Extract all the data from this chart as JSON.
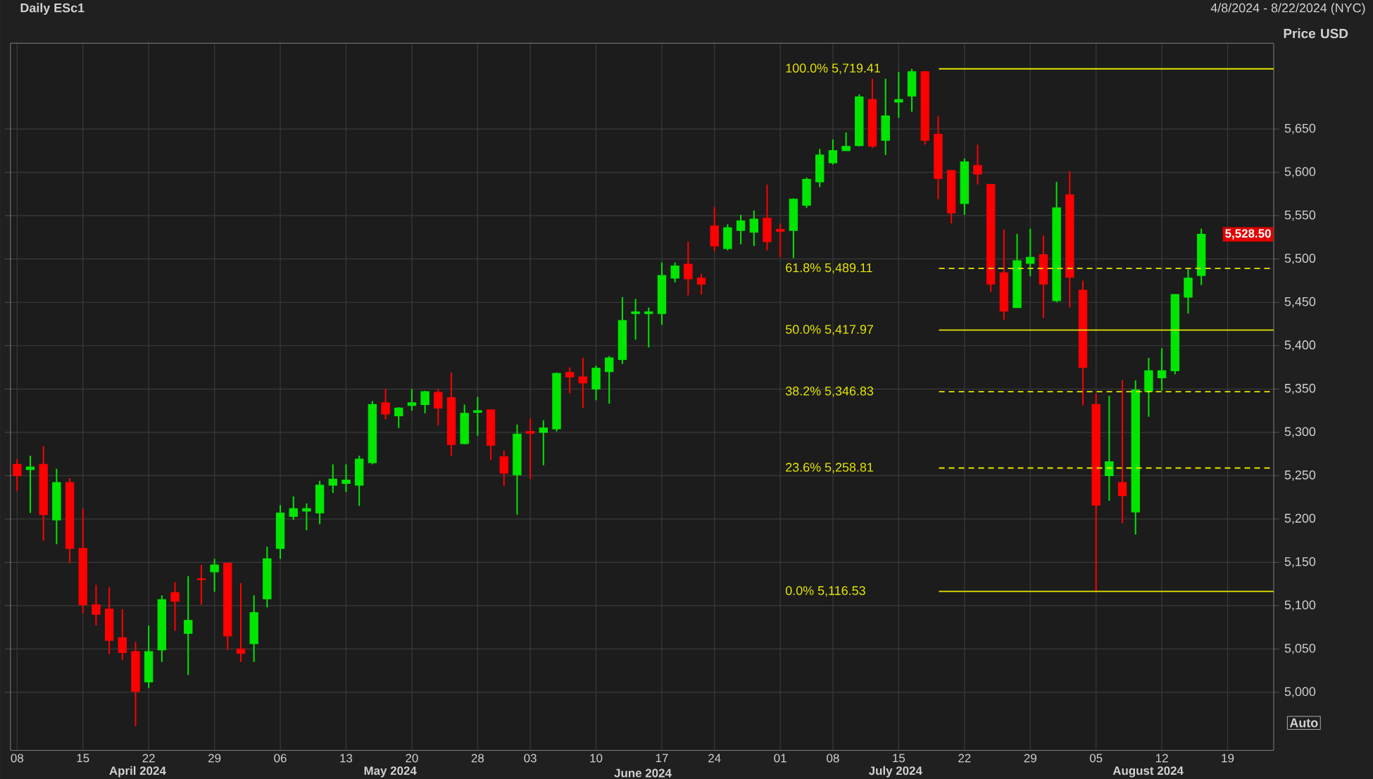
{
  "chart_data": {
    "type": "candlestick",
    "title": "Daily ESc1",
    "subtitle": "4/8/2024 - 8/22/2024 (NYC)",
    "ylabel": "Price USD",
    "categories": [
      "08",
      null,
      null,
      null,
      null,
      "15",
      null,
      null,
      null,
      null,
      "22",
      null,
      null,
      null,
      null,
      "29",
      null,
      null,
      null,
      null,
      "06",
      null,
      null,
      null,
      null,
      "13",
      null,
      null,
      null,
      null,
      "20",
      null,
      null,
      null,
      null,
      "28",
      null,
      null,
      null,
      "03",
      null,
      null,
      null,
      null,
      "10",
      null,
      null,
      null,
      null,
      "17",
      null,
      null,
      null,
      "24",
      null,
      null,
      null,
      null,
      "01",
      null,
      null,
      null,
      "08",
      null,
      null,
      null,
      null,
      "15",
      null,
      null,
      null,
      null,
      "22",
      null,
      null,
      null,
      null,
      "29",
      null,
      null,
      null,
      null,
      "05",
      null,
      null,
      null,
      null,
      "12",
      null,
      null,
      null,
      null,
      "19",
      null,
      null,
      null
    ],
    "ohlc": [
      [
        5263,
        5269,
        5232,
        5250
      ],
      [
        5257,
        5273,
        5207,
        5260
      ],
      [
        5263,
        5284,
        5175,
        5205
      ],
      [
        5199,
        5258,
        5171,
        5242
      ],
      [
        5242,
        5247,
        5149,
        5166
      ],
      [
        5166,
        5212,
        5091,
        5101
      ],
      [
        5101,
        5124,
        5077,
        5090
      ],
      [
        5096,
        5121,
        5044,
        5060
      ],
      [
        5063,
        5096,
        5037,
        5046
      ],
      [
        5047,
        5058,
        4961,
        5001
      ],
      [
        5012,
        5077,
        5005,
        5047
      ],
      [
        5049,
        5112,
        5035,
        5107
      ],
      [
        5115,
        5127,
        5071,
        5105
      ],
      [
        5068,
        5134,
        5020,
        5083
      ],
      [
        5131,
        5147,
        5101,
        5130
      ],
      [
        5139,
        5154,
        5116,
        5147
      ],
      [
        5149,
        5149,
        5049,
        5065
      ],
      [
        5050,
        5126,
        5035,
        5045
      ],
      [
        5056,
        5112,
        5035,
        5092
      ],
      [
        5108,
        5168,
        5098,
        5154
      ],
      [
        5166,
        5216,
        5154,
        5207
      ],
      [
        5203,
        5226,
        5199,
        5212
      ],
      [
        5209,
        5218,
        5187,
        5212
      ],
      [
        5207,
        5244,
        5194,
        5239
      ],
      [
        5239,
        5263,
        5230,
        5246
      ],
      [
        5241,
        5263,
        5231,
        5245
      ],
      [
        5239,
        5273,
        5215,
        5269
      ],
      [
        5265,
        5336,
        5263,
        5332
      ],
      [
        5334,
        5350,
        5315,
        5321
      ],
      [
        5319,
        5329,
        5305,
        5328
      ],
      [
        5331,
        5350,
        5325,
        5334
      ],
      [
        5332,
        5348,
        5322,
        5347
      ],
      [
        5346,
        5350,
        5308,
        5328
      ],
      [
        5340,
        5369,
        5273,
        5286
      ],
      [
        5287,
        5332,
        5286,
        5322
      ],
      [
        5323,
        5341,
        5296,
        5325
      ],
      [
        5326,
        5326,
        5268,
        5285
      ],
      [
        5272,
        5279,
        5238,
        5253
      ],
      [
        5251,
        5309,
        5205,
        5298
      ],
      [
        5301,
        5316,
        5246,
        5299
      ],
      [
        5300,
        5314,
        5262,
        5305
      ],
      [
        5304,
        5369,
        5301,
        5368
      ],
      [
        5369,
        5375,
        5345,
        5364
      ],
      [
        5364,
        5386,
        5328,
        5357
      ],
      [
        5350,
        5377,
        5337,
        5374
      ],
      [
        5370,
        5388,
        5333,
        5386
      ],
      [
        5384,
        5456,
        5379,
        5429
      ],
      [
        5437,
        5454,
        5407,
        5439
      ],
      [
        5437,
        5444,
        5398,
        5439
      ],
      [
        5437,
        5496,
        5424,
        5481
      ],
      [
        5478,
        5496,
        5473,
        5492
      ],
      [
        5494,
        5520,
        5458,
        5477
      ],
      [
        5478,
        5483,
        5459,
        5471
      ],
      [
        5538,
        5560,
        5509,
        5515
      ],
      [
        5512,
        5540,
        5510,
        5536
      ],
      [
        5533,
        5551,
        5517,
        5544
      ],
      [
        5531,
        5556,
        5515,
        5546
      ],
      [
        5547,
        5586,
        5510,
        5520
      ],
      [
        5534,
        5541,
        5502,
        5532
      ],
      [
        5533,
        5570,
        5501,
        5569
      ],
      [
        5562,
        5594,
        5559,
        5592
      ],
      [
        5589,
        5627,
        5583,
        5620
      ],
      [
        5611,
        5638,
        5609,
        5625
      ],
      [
        5625,
        5646,
        5625,
        5630
      ],
      [
        5631,
        5690,
        5630,
        5687
      ],
      [
        5684,
        5708,
        5628,
        5630
      ],
      [
        5637,
        5708,
        5620,
        5665
      ],
      [
        5681,
        5716,
        5663,
        5684
      ],
      [
        5688,
        5719.41,
        5670,
        5716
      ],
      [
        5716,
        5717,
        5632,
        5637
      ],
      [
        5644,
        5665,
        5569,
        5593
      ],
      [
        5602,
        5602,
        5541,
        5553
      ],
      [
        5564,
        5616,
        5551,
        5612
      ],
      [
        5608,
        5632,
        5586,
        5598
      ],
      [
        5586,
        5586,
        5462,
        5471
      ],
      [
        5484,
        5534,
        5430,
        5440
      ],
      [
        5444,
        5529,
        5444,
        5498
      ],
      [
        5495,
        5535,
        5480,
        5502
      ],
      [
        5505,
        5527,
        5432,
        5471
      ],
      [
        5452,
        5589,
        5450,
        5559
      ],
      [
        5574,
        5601,
        5444,
        5479
      ],
      [
        5464,
        5475,
        5331,
        5375
      ],
      [
        5332,
        5345,
        5116.53,
        5216
      ],
      [
        5250,
        5342,
        5221,
        5266
      ],
      [
        5242,
        5360,
        5195,
        5227
      ],
      [
        5208,
        5360,
        5182,
        5349
      ],
      [
        5347,
        5386,
        5318,
        5371
      ],
      [
        5363,
        5397,
        5348,
        5371
      ],
      [
        5371,
        5459,
        5367,
        5459
      ],
      [
        5456,
        5488,
        5437,
        5478
      ],
      [
        5481,
        5535,
        5470,
        5528.5
      ],
      null,
      null,
      null,
      null,
      null
    ],
    "colors": [
      "#ff0000",
      "#00e600",
      "#ff0000",
      "#00e600",
      "#ff0000",
      "#ff0000",
      "#ff0000",
      "#ff0000",
      "#ff0000",
      "#ff0000",
      "#00e600",
      "#00e600",
      "#ff0000",
      "#00e600",
      "#ff0000",
      "#00e600",
      "#ff0000",
      "#ff0000",
      "#00e600",
      "#00e600",
      "#00e600",
      "#00e600",
      "#00e600",
      "#00e600",
      "#00e600",
      "#00e600",
      "#00e600",
      "#00e600",
      "#ff0000",
      "#00e600",
      "#00e600",
      "#00e600",
      "#ff0000",
      "#ff0000",
      "#00e600",
      "#00e600",
      "#ff0000",
      "#ff0000",
      "#00e600",
      "#ff0000",
      "#00e600",
      "#00e600",
      "#ff0000",
      "#ff0000",
      "#00e600",
      "#00e600",
      "#00e600",
      "#00e600",
      "#00e600",
      "#00e600",
      "#00e600",
      "#ff0000",
      "#ff0000",
      "#ff0000",
      "#00e600",
      "#00e600",
      "#00e600",
      "#ff0000",
      "#ff0000",
      "#00e600",
      "#00e600",
      "#00e600",
      "#00e600",
      "#00e600",
      "#00e600",
      "#ff0000",
      "#00e600",
      "#00e600",
      "#00e600",
      "#ff0000",
      "#ff0000",
      "#ff0000",
      "#00e600",
      "#ff0000",
      "#ff0000",
      "#ff0000",
      "#00e600",
      "#00e600",
      "#ff0000",
      "#00e600",
      "#ff0000",
      "#ff0000",
      "#ff0000",
      "#00e600",
      "#ff0000",
      "#00e600",
      "#00e600",
      "#00e600",
      "#00e600",
      "#00e600",
      "#00e600",
      null,
      null,
      null,
      null,
      null
    ],
    "ylim": [
      4933,
      5749
    ],
    "yticks": [
      {
        "value": 5000,
        "label": "5,000"
      },
      {
        "value": 5050,
        "label": "5,050"
      },
      {
        "value": 5100,
        "label": "5,100"
      },
      {
        "value": 5150,
        "label": "5,150"
      },
      {
        "value": 5200,
        "label": "5,200"
      },
      {
        "value": 5250,
        "label": "5,250"
      },
      {
        "value": 5300,
        "label": "5,300"
      },
      {
        "value": 5350,
        "label": "5,350"
      },
      {
        "value": 5400,
        "label": "5,400"
      },
      {
        "value": 5450,
        "label": "5,450"
      },
      {
        "value": 5500,
        "label": "5,500"
      },
      {
        "value": 5550,
        "label": "5,550"
      },
      {
        "value": 5600,
        "label": "5,600"
      },
      {
        "value": 5650,
        "label": "5,650"
      }
    ],
    "grid": true,
    "ref_lines": [
      {
        "axis": "y",
        "value": 5719.41,
        "label": "100.0% 5,719.41",
        "color": "#e6e600",
        "line_style": "solid"
      },
      {
        "axis": "y",
        "value": 5489.11,
        "label": "61.8% 5,489.11",
        "color": "#e6e600",
        "line_style": "dashed"
      },
      {
        "axis": "y",
        "value": 5417.97,
        "label": "50.0% 5,417.97",
        "color": "#e6e600",
        "line_style": "solid"
      },
      {
        "axis": "y",
        "value": 5346.83,
        "label": "38.2% 5,346.83",
        "color": "#e6e600",
        "line_style": "dashed"
      },
      {
        "axis": "y",
        "value": 5258.81,
        "label": "23.6% 5,258.81",
        "color": "#e6e600",
        "line_style": "dashed"
      },
      {
        "axis": "y",
        "value": 5116.53,
        "label": "0.0% 5,116.53",
        "color": "#e6e600",
        "line_style": "solid"
      }
    ],
    "annotations": [
      "April 2024",
      "May 2024",
      "June 2024",
      "July 2024",
      "August 2024",
      "Auto",
      "5,528.50"
    ]
  }
}
